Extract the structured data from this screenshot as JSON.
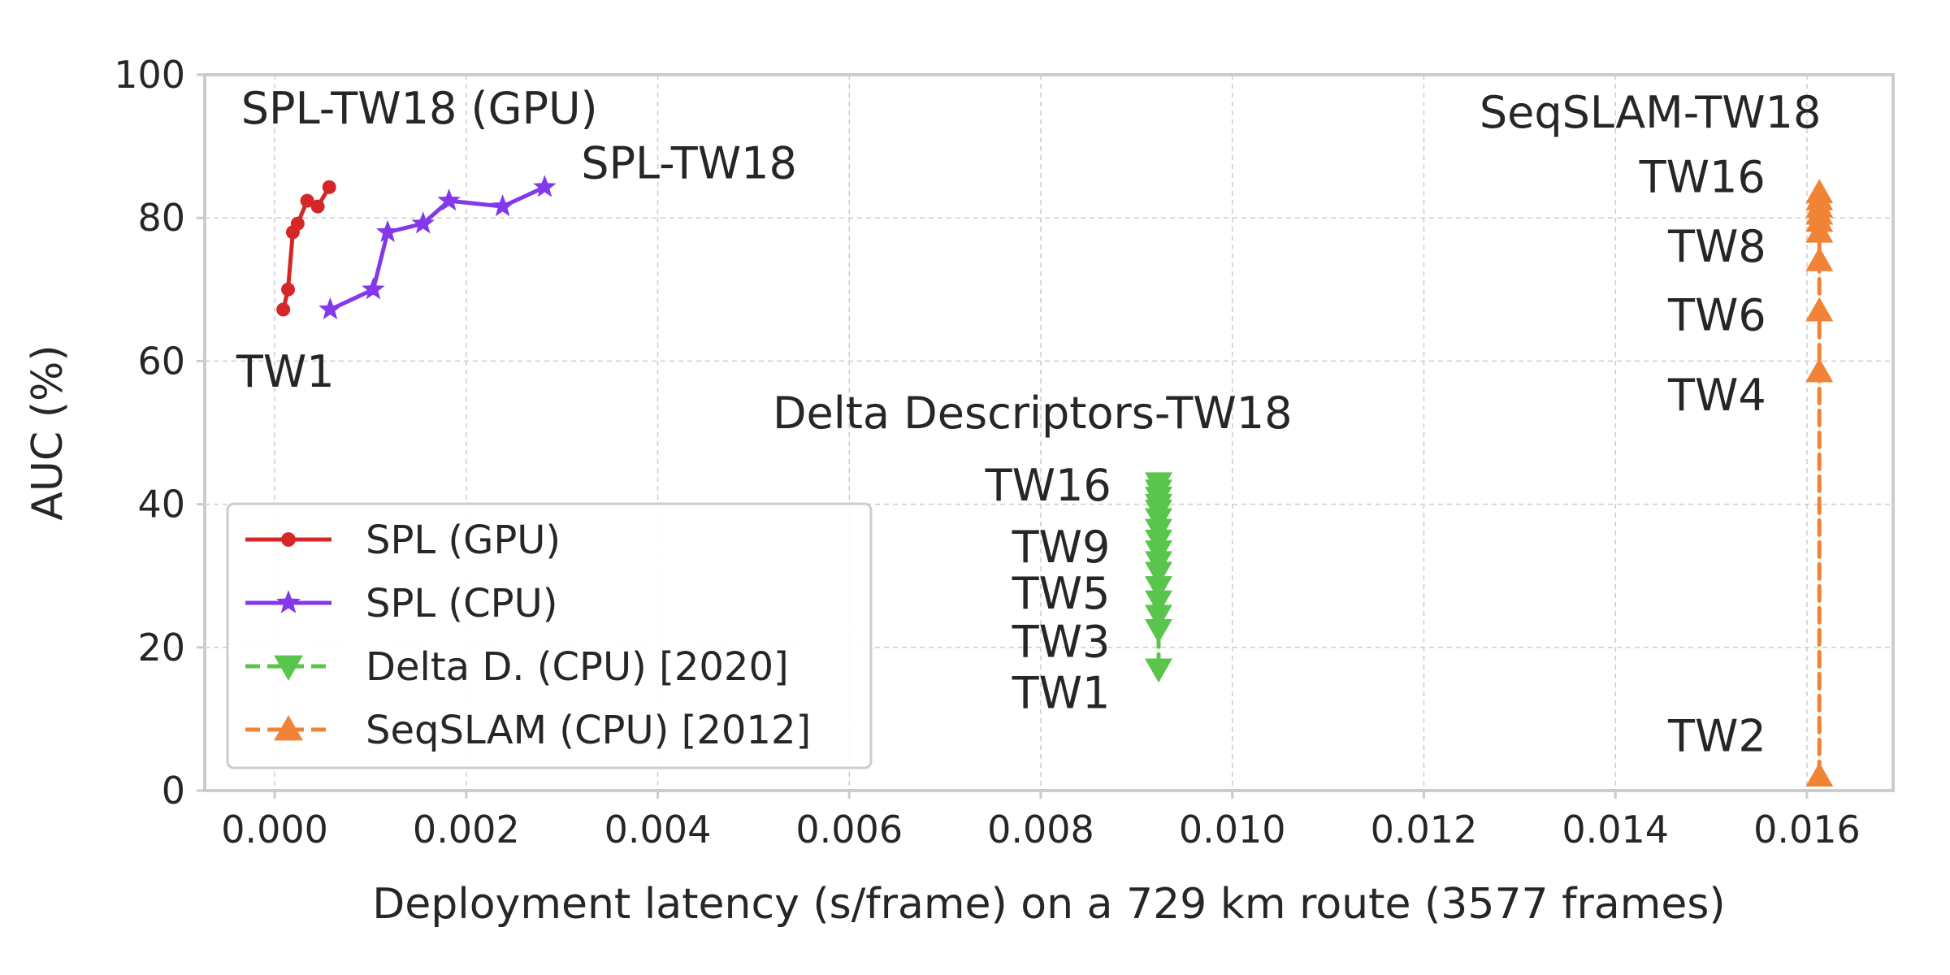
{
  "chart_data": {
    "type": "line",
    "xlabel": "Deployment latency (s/frame) on a 729 km route (3577 frames)",
    "ylabel": "AUC (%)",
    "xlim": [
      -0.00073,
      0.0169
    ],
    "ylim": [
      0,
      100
    ],
    "xticks": [
      0.0,
      0.002,
      0.004,
      0.006,
      0.008,
      0.01,
      0.012,
      0.014,
      0.016
    ],
    "xtick_labels": [
      "0.000",
      "0.002",
      "0.004",
      "0.006",
      "0.008",
      "0.010",
      "0.012",
      "0.014",
      "0.016"
    ],
    "yticks": [
      0,
      20,
      40,
      60,
      80,
      100
    ],
    "ytick_labels": [
      "0",
      "20",
      "40",
      "60",
      "80",
      "100"
    ],
    "grid": true,
    "legend_position": "lower-left",
    "series": [
      {
        "name": "SPL (GPU)",
        "color": "#d62728",
        "marker": "circle",
        "linestyle": "solid",
        "x": [
          9e-05,
          0.00014,
          0.00019,
          0.00024,
          0.00034,
          0.00045,
          0.00057
        ],
        "y": [
          67.2,
          70.0,
          78.0,
          79.2,
          82.4,
          81.6,
          84.3
        ]
      },
      {
        "name": "SPL (CPU)",
        "color": "#8338ec",
        "marker": "star",
        "linestyle": "solid",
        "x": [
          0.00058,
          0.00103,
          0.00118,
          0.00155,
          0.00182,
          0.00238,
          0.00282
        ],
        "y": [
          67.2,
          70.0,
          78.0,
          79.2,
          82.4,
          81.6,
          84.3
        ]
      },
      {
        "name": "Delta D. (CPU) [2020]",
        "color": "#5ac54d",
        "marker": "triangle-down",
        "linestyle": "dashed",
        "x": [
          0.00923,
          0.00923,
          0.00923,
          0.00923,
          0.00923,
          0.00923,
          0.00923,
          0.00923,
          0.00923,
          0.00923,
          0.00923,
          0.00923,
          0.00923,
          0.00923,
          0.00923,
          0.00923
        ],
        "y": [
          17.0,
          22.5,
          24.5,
          26.5,
          28.5,
          30.5,
          32.0,
          33.5,
          35.0,
          36.5,
          38.0,
          39.2,
          40.0,
          41.0,
          42.0,
          43.0
        ]
      },
      {
        "name": "SeqSLAM (CPU) [2012]",
        "color": "#f08336",
        "marker": "triangle-up",
        "linestyle": "dashed",
        "x": [
          0.01613,
          0.01613,
          0.01613,
          0.01613,
          0.01613,
          0.01613,
          0.01613,
          0.01613,
          0.01613,
          0.01613
        ],
        "y": [
          2.0,
          58.5,
          67.0,
          74.0,
          78.0,
          79.5,
          80.5,
          81.5,
          82.5,
          83.5
        ]
      }
    ],
    "annotations": [
      {
        "text": "SPL-TW18 (GPU)",
        "x": -0.00035,
        "y": 93.2
      },
      {
        "text": "SPL-TW18",
        "x": 0.0032,
        "y": 85.5
      },
      {
        "text": "TW1",
        "x": -0.0004,
        "y": 56.4
      },
      {
        "text": "Delta Descriptors-TW18",
        "x": 0.0052,
        "y": 50.6
      },
      {
        "text": "TW16",
        "x": 0.00742,
        "y": 40.5
      },
      {
        "text": "TW9",
        "x": 0.0077,
        "y": 31.9
      },
      {
        "text": "TW5",
        "x": 0.0077,
        "y": 25.4
      },
      {
        "text": "TW3",
        "x": 0.0077,
        "y": 18.7
      },
      {
        "text": "TW1",
        "x": 0.0077,
        "y": 11.5
      },
      {
        "text": "SeqSLAM-TW18",
        "x": 0.01258,
        "y": 92.6
      },
      {
        "text": "TW16",
        "x": 0.01425,
        "y": 83.6
      },
      {
        "text": "TW8",
        "x": 0.01455,
        "y": 73.9
      },
      {
        "text": "TW6",
        "x": 0.01455,
        "y": 64.3
      },
      {
        "text": "TW4",
        "x": 0.01455,
        "y": 53.1
      },
      {
        "text": "TW2",
        "x": 0.01455,
        "y": 5.5
      }
    ]
  }
}
